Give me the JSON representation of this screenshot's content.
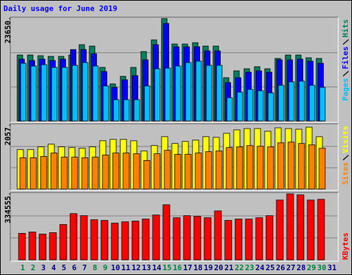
{
  "title": "Daily usage for June 2019",
  "chart_data": [
    {
      "type": "bar",
      "ylim": [
        0,
        23650
      ],
      "yticks": [
        23650
      ],
      "series": [
        {
          "name": "Hits",
          "color": "#008060",
          "values": [
            15235,
            15235,
            15077,
            14918,
            14918,
            15235,
            17615,
            17300,
            12380,
            8570,
            10315,
            12380,
            16030,
            18730,
            23650,
            17775,
            17775,
            18090,
            17300,
            17300,
            10000,
            11585,
            12060,
            12540,
            12060,
            14440,
            15235,
            15235,
            14600,
            14440,
            null
          ]
        },
        {
          "name": "Files",
          "color": "#0000ff",
          "values": [
            14283,
            13966,
            14283,
            13966,
            14283,
            16500,
            16500,
            15550,
            11427,
            7776,
            9522,
            10474,
            14124,
            17616,
            22535,
            17140,
            17140,
            17140,
            16187,
            16187,
            8888,
            10000,
            11268,
            11585,
            11268,
            14124,
            14124,
            14283,
            13807,
            13330,
            null
          ]
        },
        {
          "name": "Pages",
          "color": "#00c0ff",
          "values": [
            13330,
            12696,
            13013,
            12380,
            12380,
            12855,
            13490,
            12696,
            8092,
            4920,
            4920,
            4920,
            8092,
            12060,
            12220,
            12696,
            13490,
            13807,
            12855,
            12855,
            5395,
            6665,
            7300,
            6982,
            6506,
            8250,
            9045,
            9204,
            8250,
            7776,
            null
          ]
        }
      ]
    },
    {
      "type": "bar",
      "ylim": [
        0,
        2057
      ],
      "yticks": [
        2057
      ],
      "series": [
        {
          "name": "Visits",
          "color": "#ffff00",
          "values": [
            1269,
            1269,
            1357,
            1444,
            1357,
            1335,
            1313,
            1357,
            1553,
            1597,
            1597,
            1553,
            1225,
            1400,
            1685,
            1466,
            1532,
            1575,
            1685,
            1663,
            1794,
            1904,
            1947,
            1947,
            1860,
            1969,
            1947,
            1925,
            1991,
            1685,
            null
          ]
        },
        {
          "name": "Sites",
          "color": "#ff8000",
          "values": [
            1006,
            1006,
            1050,
            1160,
            1028,
            1028,
            1006,
            1028,
            1094,
            1160,
            1160,
            1138,
            919,
            1138,
            1247,
            1116,
            1116,
            1160,
            1203,
            1225,
            1335,
            1357,
            1400,
            1378,
            1357,
            1488,
            1510,
            1466,
            1422,
            1313,
            null
          ]
        }
      ]
    },
    {
      "type": "bar",
      "ylim": [
        0,
        334555
      ],
      "yticks": [
        334555
      ],
      "categories": [
        "1",
        "2",
        "3",
        "4",
        "5",
        "6",
        "7",
        "8",
        "9",
        "10",
        "11",
        "12",
        "13",
        "14",
        "15",
        "16",
        "17",
        "18",
        "19",
        "20",
        "21",
        "22",
        "23",
        "24",
        "25",
        "26",
        "27",
        "28",
        "29",
        "30",
        "31"
      ],
      "category_colors": [
        "#008040",
        "#008040",
        "#000080",
        "#000080",
        "#000080",
        "#000080",
        "#000080",
        "#008040",
        "#008040",
        "#000080",
        "#000080",
        "#000080",
        "#000080",
        "#000080",
        "#008040",
        "#008040",
        "#000080",
        "#000080",
        "#000080",
        "#000080",
        "#000080",
        "#008040",
        "#008040",
        "#000080",
        "#000080",
        "#000080",
        "#000080",
        "#000080",
        "#008040",
        "#008040",
        "#000080"
      ],
      "series": [
        {
          "name": "KBytes",
          "color": "#ff0000",
          "values": [
            134500,
            141400,
            131000,
            138000,
            179300,
            234500,
            224200,
            203500,
            200000,
            186200,
            193100,
            196600,
            206900,
            227600,
            279400,
            213800,
            224200,
            220700,
            213800,
            248300,
            200000,
            206900,
            206900,
            213800,
            224200,
            303500,
            334555,
            330000,
            303500,
            307000,
            null
          ]
        }
      ]
    }
  ]
}
